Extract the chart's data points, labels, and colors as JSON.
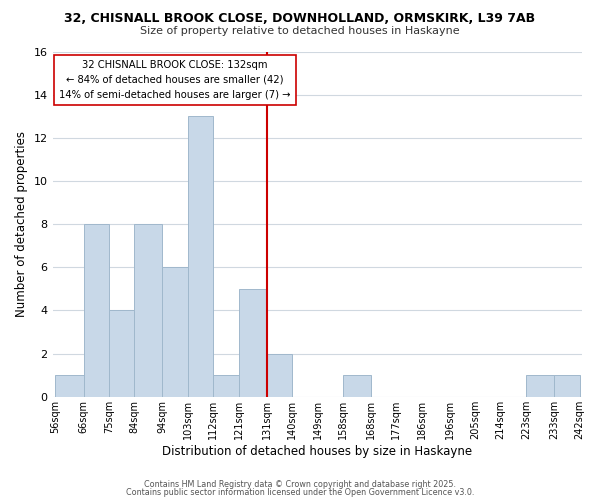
{
  "title_line1": "32, CHISNALL BROOK CLOSE, DOWNHOLLAND, ORMSKIRK, L39 7AB",
  "title_line2": "Size of property relative to detached houses in Haskayne",
  "xlabel": "Distribution of detached houses by size in Haskayne",
  "ylabel": "Number of detached properties",
  "bar_edges": [
    56,
    66,
    75,
    84,
    94,
    103,
    112,
    121,
    131,
    140,
    149,
    158,
    168,
    177,
    186,
    196,
    205,
    214,
    223,
    233,
    242
  ],
  "bar_heights": [
    1,
    8,
    4,
    8,
    6,
    13,
    1,
    5,
    2,
    0,
    0,
    1,
    0,
    0,
    0,
    0,
    0,
    0,
    1,
    1
  ],
  "bar_color": "#c8d8e8",
  "bar_edgecolor": "#a0b8cc",
  "vline_x": 131,
  "vline_color": "#cc0000",
  "annotation_text": "32 CHISNALL BROOK CLOSE: 132sqm\n← 84% of detached houses are smaller (42)\n14% of semi-detached houses are larger (7) →",
  "annotation_box_edgecolor": "#cc0000",
  "annotation_box_facecolor": "#ffffff",
  "ylim": [
    0,
    16
  ],
  "yticks": [
    0,
    2,
    4,
    6,
    8,
    10,
    12,
    14,
    16
  ],
  "tick_labels": [
    "56sqm",
    "66sqm",
    "75sqm",
    "84sqm",
    "94sqm",
    "103sqm",
    "112sqm",
    "121sqm",
    "131sqm",
    "140sqm",
    "149sqm",
    "158sqm",
    "168sqm",
    "177sqm",
    "186sqm",
    "196sqm",
    "205sqm",
    "214sqm",
    "223sqm",
    "233sqm",
    "242sqm"
  ],
  "footer_line1": "Contains HM Land Registry data © Crown copyright and database right 2025.",
  "footer_line2": "Contains public sector information licensed under the Open Government Licence v3.0.",
  "bg_color": "#ffffff",
  "grid_color": "#d0d8e0"
}
